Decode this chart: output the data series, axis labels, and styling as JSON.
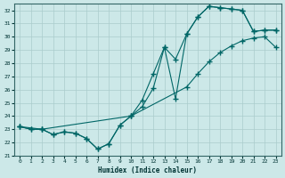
{
  "xlabel": "Humidex (Indice chaleur)",
  "bg_color": "#cce8e8",
  "grid_color": "#aacccc",
  "line_color": "#006666",
  "xlim": [
    -0.5,
    23.5
  ],
  "ylim": [
    21,
    32.5
  ],
  "yticks": [
    21,
    22,
    23,
    24,
    25,
    26,
    27,
    28,
    29,
    30,
    31,
    32
  ],
  "xticks": [
    0,
    1,
    2,
    3,
    4,
    5,
    6,
    7,
    8,
    9,
    10,
    11,
    12,
    13,
    14,
    15,
    16,
    17,
    18,
    19,
    20,
    21,
    22,
    23
  ],
  "line1_x": [
    0,
    1,
    2,
    3,
    4,
    5,
    6,
    7,
    8,
    9,
    10,
    11,
    12,
    13,
    14,
    15,
    16,
    17,
    18,
    19,
    20,
    21,
    22,
    23
  ],
  "line1_y": [
    23.2,
    23.0,
    23.0,
    22.6,
    22.8,
    22.7,
    22.3,
    21.5,
    21.9,
    23.3,
    24.0,
    24.7,
    26.1,
    29.2,
    25.3,
    30.2,
    31.5,
    32.3,
    32.2,
    32.1,
    32.0,
    30.4,
    30.5,
    30.5
  ],
  "line2_x": [
    0,
    1,
    2,
    3,
    4,
    5,
    6,
    7,
    8,
    9,
    10,
    11,
    12,
    13,
    14,
    15,
    16,
    17,
    18,
    19,
    20,
    21,
    22,
    23
  ],
  "line2_y": [
    23.2,
    23.0,
    23.0,
    22.6,
    22.8,
    22.7,
    22.3,
    21.5,
    21.9,
    23.3,
    24.0,
    25.2,
    27.2,
    29.2,
    28.3,
    30.2,
    31.5,
    32.3,
    32.2,
    32.1,
    32.0,
    30.4,
    30.5,
    30.5
  ],
  "line3_x": [
    0,
    2,
    10,
    15,
    16,
    17,
    18,
    19,
    20,
    21,
    22,
    23
  ],
  "line3_y": [
    23.2,
    23.0,
    24.0,
    26.2,
    27.2,
    28.1,
    28.8,
    29.3,
    29.7,
    29.9,
    30.0,
    29.2
  ]
}
